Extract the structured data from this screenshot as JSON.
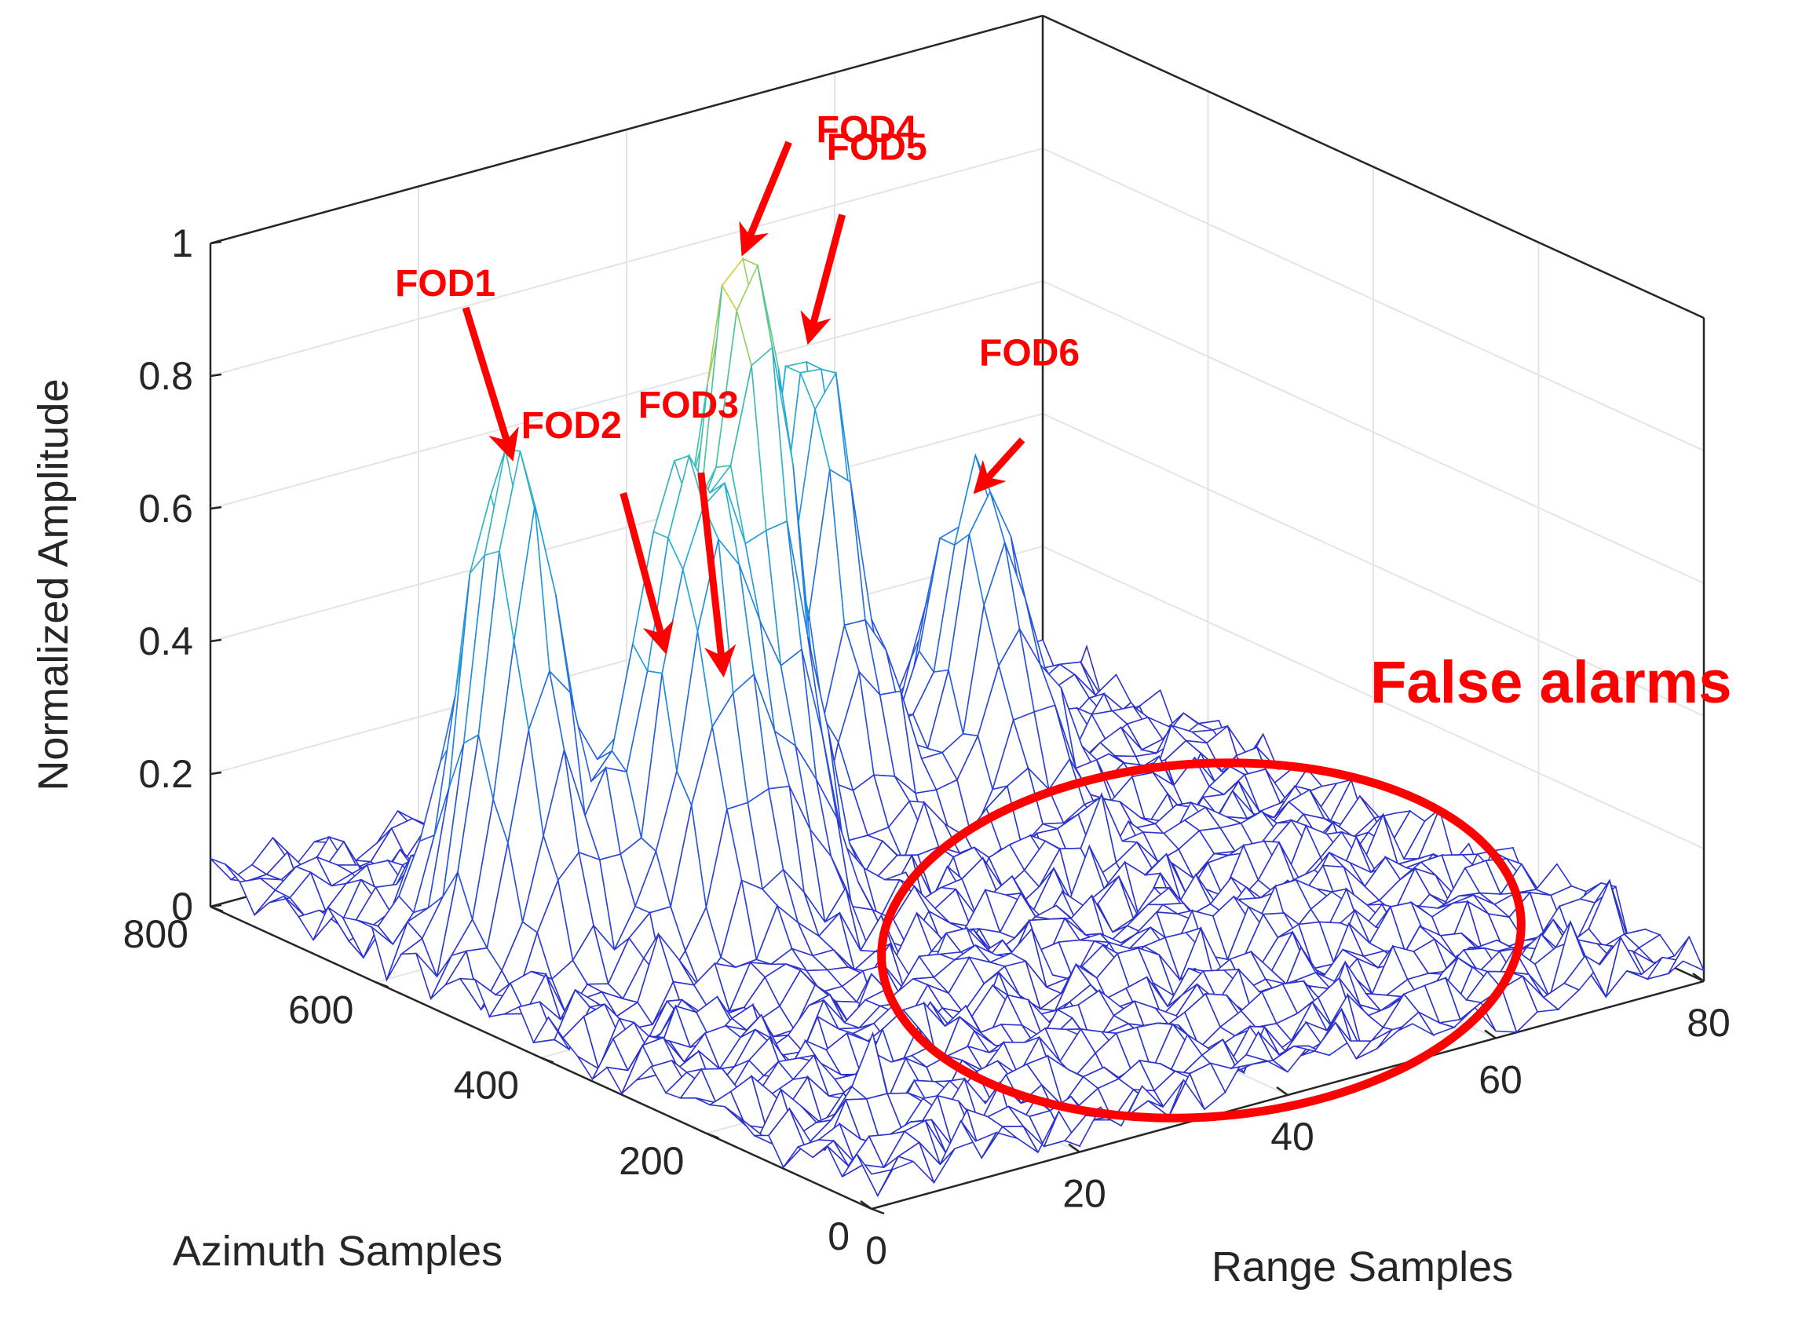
{
  "chart_data": {
    "type": "surface",
    "xlabel": "Range Samples",
    "ylabel": "Azimuth Samples",
    "zlabel": "Normalized Amplitude",
    "xlim": [
      0,
      80
    ],
    "ylim": [
      0,
      800
    ],
    "zlim": [
      0,
      1
    ],
    "x_ticks": [
      "0",
      "20",
      "40",
      "60",
      "80"
    ],
    "y_ticks": [
      "0",
      "200",
      "400",
      "600",
      "800"
    ],
    "z_ticks": [
      "0",
      "0.2",
      "0.4",
      "0.6",
      "0.8",
      "1"
    ],
    "grid": true,
    "peaks": [
      {
        "name": "FOD1",
        "range": 10,
        "azimuth": 560,
        "amplitude": 0.76
      },
      {
        "name": "FOD2",
        "range": 20,
        "azimuth": 500,
        "amplitude": 0.46
      },
      {
        "name": "FOD3",
        "range": 24,
        "azimuth": 480,
        "amplitude": 0.42
      },
      {
        "name": "FOD4",
        "range": 30,
        "azimuth": 530,
        "amplitude": 1.0
      },
      {
        "name": "FOD5",
        "range": 45,
        "azimuth": 640,
        "amplitude": 0.74
      },
      {
        "name": "FOD6",
        "range": 58,
        "azimuth": 600,
        "amplitude": 0.48
      }
    ],
    "noise_level": 0.08,
    "annotation": "False alarms",
    "colors": {
      "low": "#2b2bc8",
      "mid": "#20a8d8",
      "high": "#f0d020",
      "annotation": "#ff0000"
    }
  }
}
